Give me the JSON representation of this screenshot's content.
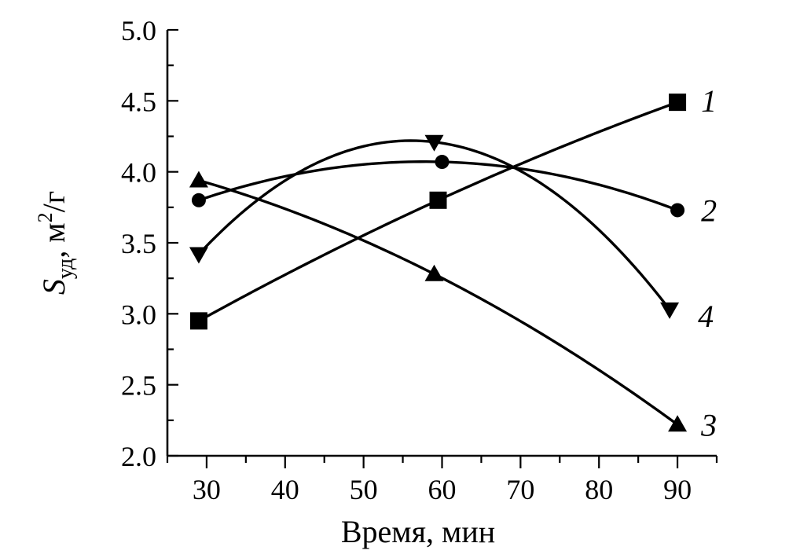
{
  "chart_data": {
    "type": "line",
    "xlabel": "Время, мин",
    "ylabel": {
      "symbol": "S",
      "subscript": "уд",
      "sep": ", ",
      "unit": "м",
      "unit_power": "2",
      "unit_rest": "/г"
    },
    "xlim": [
      25,
      95
    ],
    "ylim": [
      2.0,
      5.0
    ],
    "x_ticks": [
      30,
      40,
      50,
      60,
      70,
      80,
      90
    ],
    "x_tick_labels": [
      "30",
      "40",
      "50",
      "60",
      "70",
      "80",
      "90"
    ],
    "y_ticks": [
      2.0,
      2.5,
      3.0,
      3.5,
      4.0,
      4.5,
      5.0
    ],
    "y_tick_labels": [
      "2.0",
      "2.5",
      "3.0",
      "3.5",
      "4.0",
      "4.5",
      "5.0"
    ],
    "grid": false,
    "legend": "inline labels at line ends (right)",
    "series": [
      {
        "name": "1",
        "marker": "square",
        "x": [
          29,
          59.5,
          90
        ],
        "y": [
          2.95,
          3.8,
          4.49
        ]
      },
      {
        "name": "2",
        "marker": "circle",
        "x": [
          29,
          60,
          90
        ],
        "y": [
          3.8,
          4.07,
          3.73
        ]
      },
      {
        "name": "3",
        "marker": "triangle-up",
        "x": [
          29,
          59,
          90
        ],
        "y": [
          3.94,
          3.28,
          2.22
        ]
      },
      {
        "name": "4",
        "marker": "triangle-down",
        "x": [
          29,
          59,
          89
        ],
        "y": [
          3.42,
          4.21,
          3.03
        ]
      }
    ]
  }
}
